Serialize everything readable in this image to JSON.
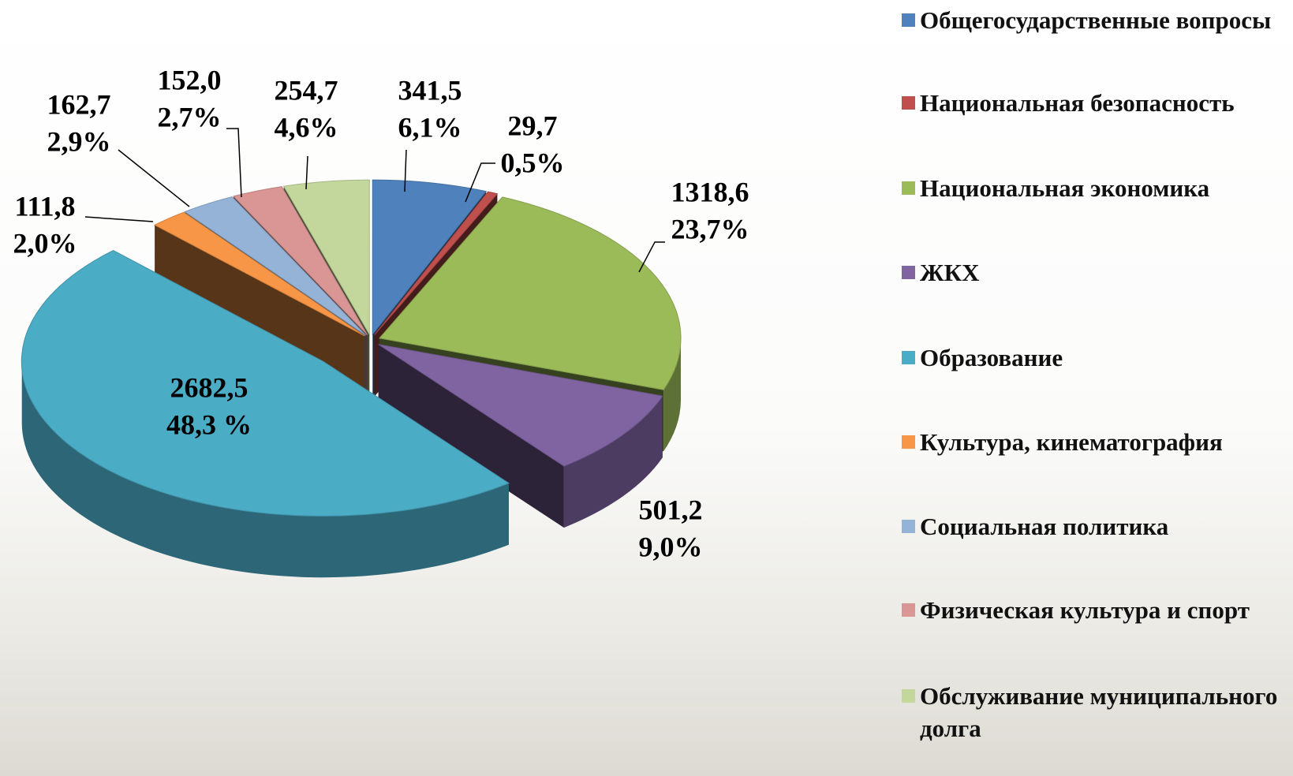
{
  "chart_data": {
    "type": "pie",
    "categories": [
      "Общегосударственные вопросы",
      "Национальная безопасность",
      "Национальная экономика",
      "ЖКХ",
      "Образование",
      "Культура, кинематография",
      "Социальная политика",
      "Физическая культура и спорт",
      "Обслуживание муниципального долга"
    ],
    "values": [
      341.5,
      29.7,
      1318.6,
      501.2,
      2682.5,
      111.8,
      162.7,
      152.0,
      254.7
    ],
    "value_labels": [
      "341,5",
      "29,7",
      "1318,6",
      "501,2",
      "2682,5",
      "111,8",
      "162,7",
      "152,0",
      "254,7"
    ],
    "share_labels": [
      "6,1%",
      "0,5%",
      "23,7%",
      "9,0%",
      "48,3 %",
      "2,0%",
      "2,9%",
      "2,7%",
      "4,6%"
    ],
    "colors": [
      "#4f81bd",
      "#c0504d",
      "#9bbb59",
      "#8064a2",
      "#4bacc6",
      "#f79646",
      "#95b3d7",
      "#d99694",
      "#c3d69b"
    ],
    "legend": "right"
  }
}
